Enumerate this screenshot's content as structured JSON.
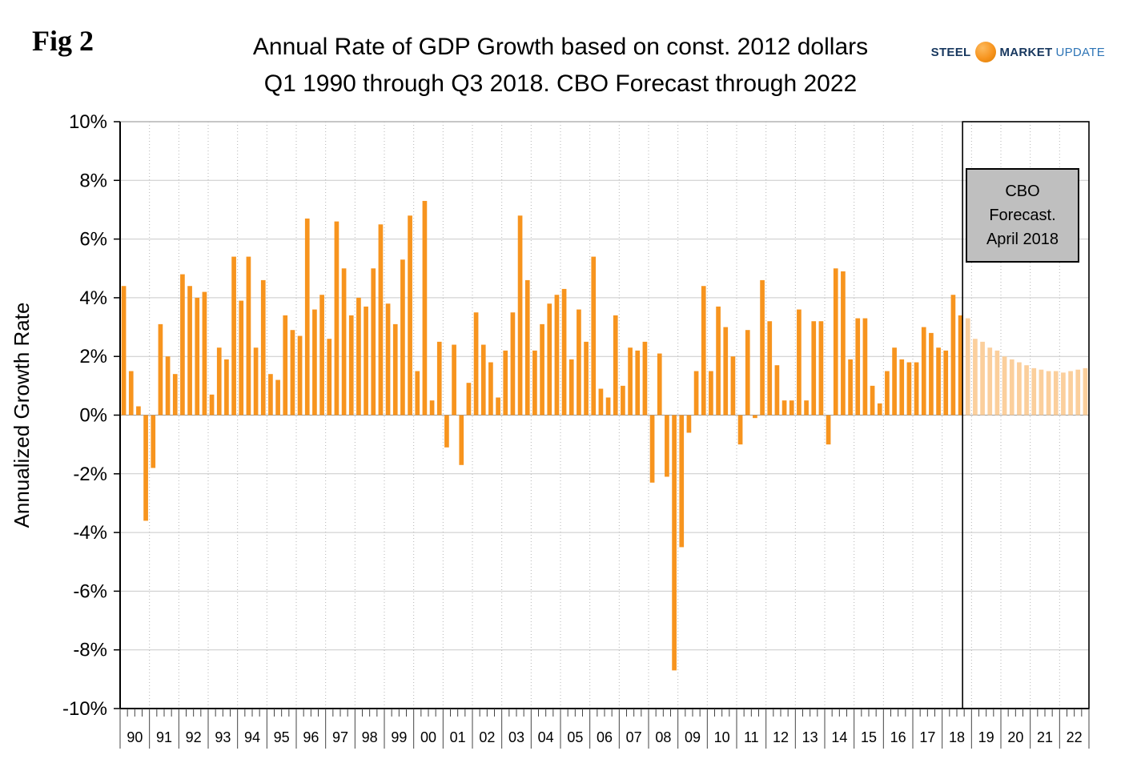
{
  "fig_label": "Fig 2",
  "title_line1": "Annual Rate of GDP Growth based on const. 2012 dollars",
  "title_line2": "Q1 1990 through Q3 2018. CBO Forecast through 2022",
  "logo": {
    "steel": "STEEL",
    "market": "MARKET",
    "update": "UPDATE"
  },
  "forecast_box_label": {
    "line1": "CBO",
    "line2": "Forecast.",
    "line3": "April 2018"
  },
  "chart_data": {
    "type": "bar",
    "title": "Annual Rate of GDP Growth based on const. 2012 dollars Q1 1990 through Q3 2018. CBO Forecast through 2022",
    "xlabel": "",
    "ylabel": "Annualized Growth Rate",
    "ylim": [
      -10,
      10
    ],
    "y_tick_step": 2,
    "y_tick_labels": [
      "10%",
      "8%",
      "6%",
      "4%",
      "2%",
      "0%",
      "-2%",
      "-4%",
      "-6%",
      "-8%",
      "-10%"
    ],
    "grid": true,
    "legend": "none",
    "year_labels": [
      "90",
      "91",
      "92",
      "93",
      "94",
      "95",
      "96",
      "97",
      "98",
      "99",
      "00",
      "01",
      "02",
      "03",
      "04",
      "05",
      "06",
      "07",
      "08",
      "09",
      "10",
      "11",
      "12",
      "13",
      "14",
      "15",
      "16",
      "17",
      "18",
      "19",
      "20",
      "21",
      "22"
    ],
    "quarters_per_year": 4,
    "forecast_start_index": 115,
    "bar_color": "#F7941E",
    "forecast_bar_color": "#FBCF9C",
    "values": [
      4.4,
      1.5,
      0.3,
      -3.6,
      -1.8,
      3.1,
      2.0,
      1.4,
      4.8,
      4.4,
      4.0,
      4.2,
      0.7,
      2.3,
      1.9,
      5.4,
      3.9,
      5.4,
      2.3,
      4.6,
      1.4,
      1.2,
      3.4,
      2.9,
      2.7,
      6.7,
      3.6,
      4.1,
      2.6,
      6.6,
      5.0,
      3.4,
      4.0,
      3.7,
      5.0,
      6.5,
      3.8,
      3.1,
      5.3,
      6.8,
      1.5,
      7.3,
      0.5,
      2.5,
      -1.1,
      2.4,
      -1.7,
      1.1,
      3.5,
      2.4,
      1.8,
      0.6,
      2.2,
      3.5,
      6.8,
      4.6,
      2.2,
      3.1,
      3.8,
      4.1,
      4.3,
      1.9,
      3.6,
      2.5,
      5.4,
      0.9,
      0.6,
      3.4,
      1.0,
      2.3,
      2.2,
      2.5,
      -2.3,
      2.1,
      -2.1,
      -8.7,
      -4.5,
      -0.6,
      1.5,
      4.4,
      1.5,
      3.7,
      3.0,
      2.0,
      -1.0,
      2.9,
      -0.1,
      4.6,
      3.2,
      1.7,
      0.5,
      0.5,
      3.6,
      0.5,
      3.2,
      3.2,
      -1.0,
      5.0,
      4.9,
      1.9,
      3.3,
      3.3,
      1.0,
      0.4,
      1.5,
      2.3,
      1.9,
      1.8,
      1.8,
      3.0,
      2.8,
      2.3,
      2.2,
      4.1,
      3.4,
      3.3,
      2.6,
      2.5,
      2.3,
      2.2,
      2.0,
      1.9,
      1.8,
      1.7,
      1.6,
      1.55,
      1.5,
      1.5,
      1.45,
      1.5,
      1.55,
      1.6
    ]
  }
}
